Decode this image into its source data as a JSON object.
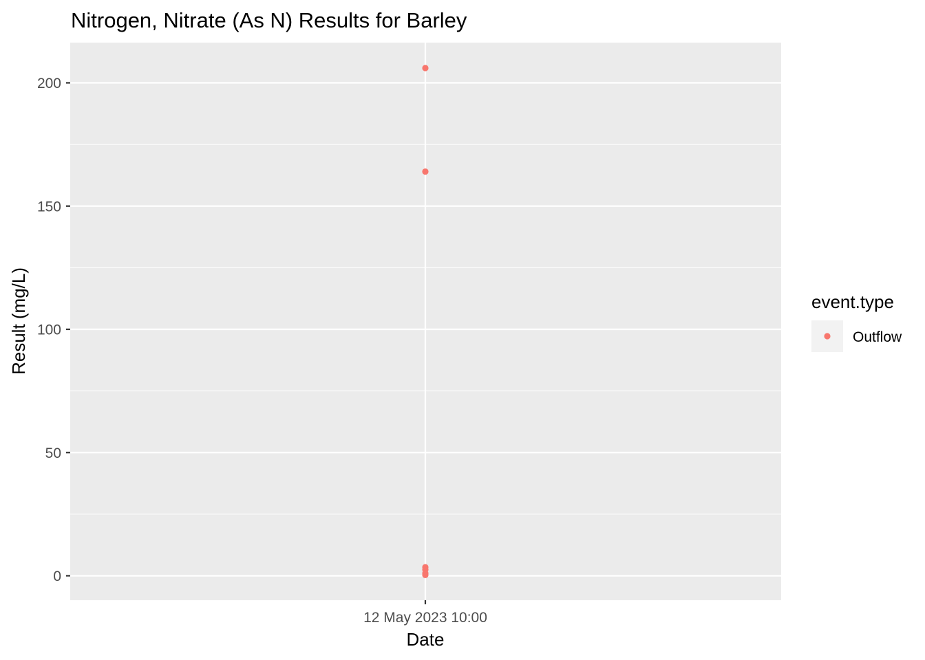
{
  "chart_data": {
    "type": "scatter",
    "title": "Nitrogen, Nitrate (As N) Results for Barley",
    "xlabel": "Date",
    "ylabel": "Result (mg/L)",
    "x_ticks": [
      "12 May 2023 10:00"
    ],
    "y_ticks": [
      0,
      50,
      100,
      150,
      200
    ],
    "ylim": [
      -10,
      216
    ],
    "grid": true,
    "legend": {
      "title": "event.type",
      "position": "right",
      "entries": [
        {
          "label": "Outflow",
          "color": "#F8766D"
        }
      ]
    },
    "series": [
      {
        "name": "Outflow",
        "color": "#F8766D",
        "points": [
          {
            "x": "12 May 2023 10:00",
            "y": 206
          },
          {
            "x": "12 May 2023 10:00",
            "y": 164
          },
          {
            "x": "12 May 2023 10:00",
            "y": 3.5
          },
          {
            "x": "12 May 2023 10:00",
            "y": 2.5
          },
          {
            "x": "12 May 2023 10:00",
            "y": 1
          },
          {
            "x": "12 May 2023 10:00",
            "y": 0.3
          }
        ]
      }
    ]
  }
}
